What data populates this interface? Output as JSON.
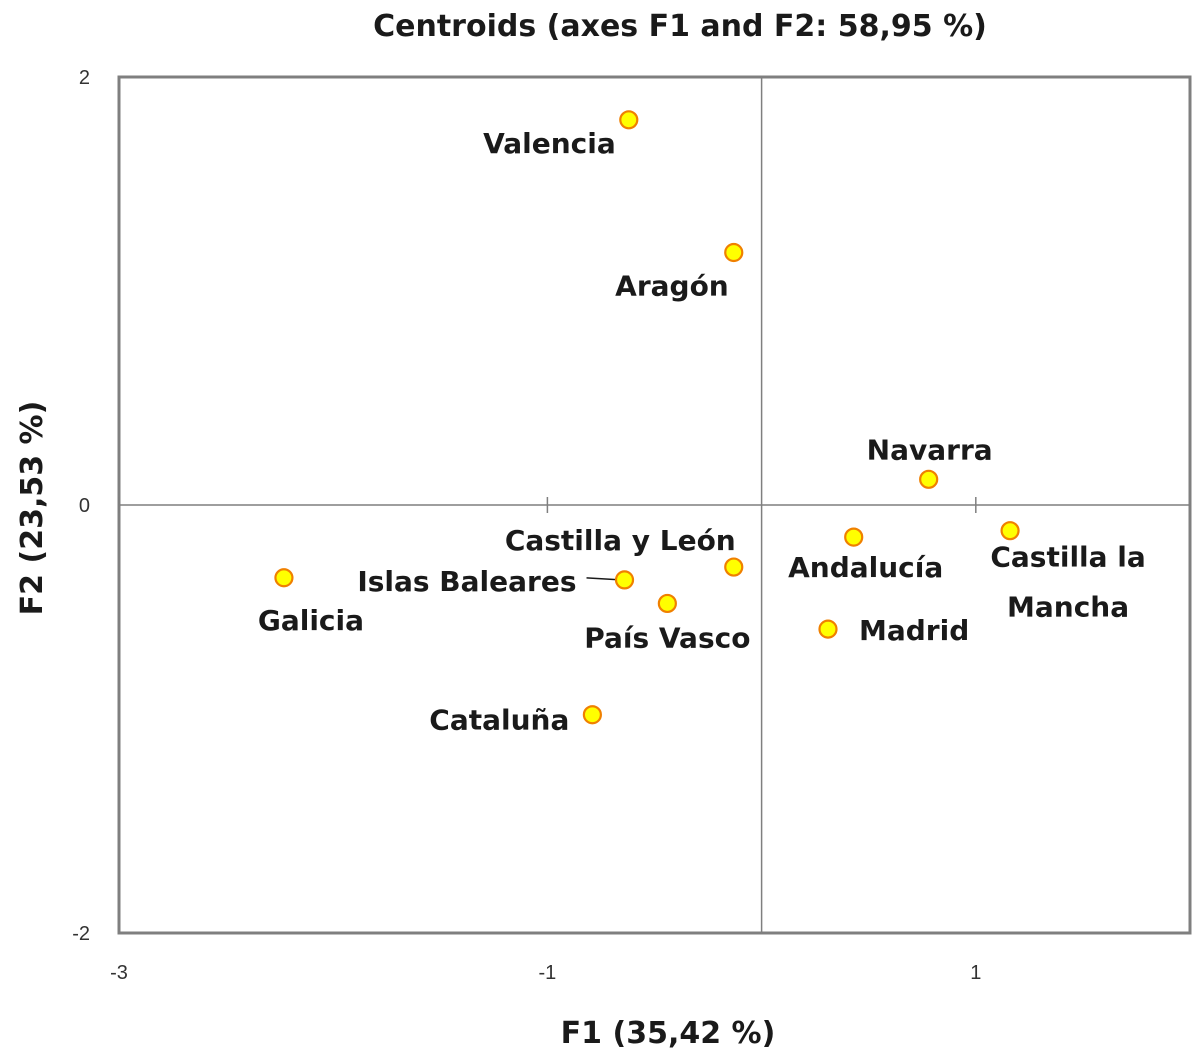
{
  "chart_data": {
    "type": "scatter",
    "title": "Centroids (axes F1 and F2: 58,95 %)",
    "xlabel": "F1 (35,42 %)",
    "ylabel": "F2 (23,53 %)",
    "xlim": [
      -3,
      2
    ],
    "ylim": [
      -2,
      2
    ],
    "x_ticks": [
      -3,
      -1,
      1
    ],
    "x_tick_labels": [
      "-3",
      "-1",
      "1"
    ],
    "y_ticks": [
      2,
      0,
      -2
    ],
    "y_tick_labels": [
      "2",
      "0",
      "-2"
    ],
    "grid": false,
    "colors": {
      "marker_fill": "#ffff00",
      "marker_edge": "#f08000",
      "axes": "#808080"
    },
    "points": [
      {
        "name": "Valencia",
        "x": -0.62,
        "y": 1.8
      },
      {
        "name": "Aragón",
        "x": -0.13,
        "y": 1.18
      },
      {
        "name": "Navarra",
        "x": 0.78,
        "y": 0.12
      },
      {
        "name": "Castilla la Mancha",
        "x": 1.16,
        "y": -0.12
      },
      {
        "name": "Andalucía",
        "x": 0.43,
        "y": -0.15
      },
      {
        "name": "Castilla y León",
        "x": -0.13,
        "y": -0.29
      },
      {
        "name": "Islas  Baleares",
        "x": -0.64,
        "y": -0.35
      },
      {
        "name": "País Vasco",
        "x": -0.44,
        "y": -0.46
      },
      {
        "name": "Madrid",
        "x": 0.31,
        "y": -0.58
      },
      {
        "name": "Galicia",
        "x": -2.23,
        "y": -0.34
      },
      {
        "name": "Cataluña",
        "x": -0.79,
        "y": -0.98
      }
    ]
  }
}
